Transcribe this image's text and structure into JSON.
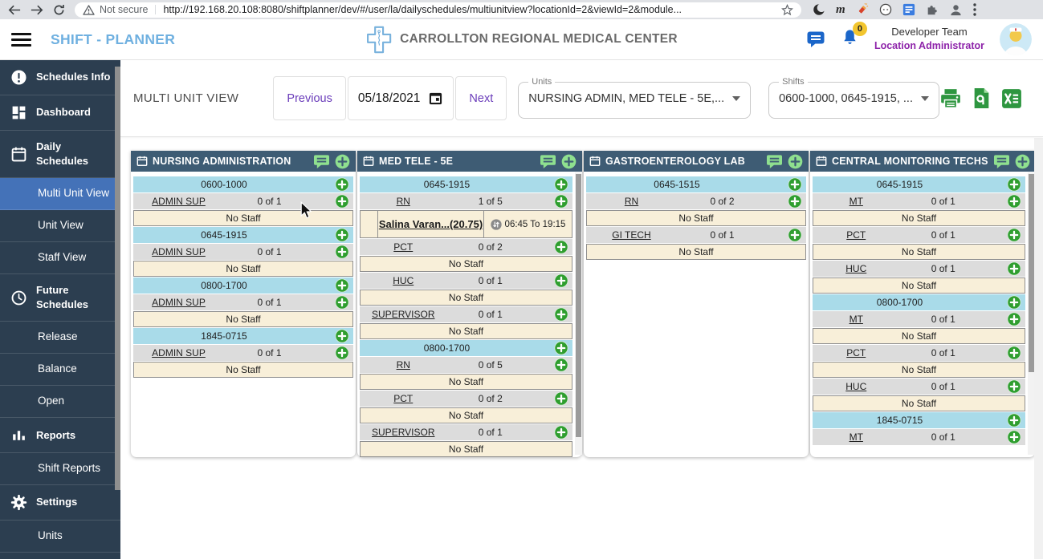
{
  "browser": {
    "security_label": "Not secure",
    "url": "http://192.168.20.108:8080/shiftplanner/dev/#/user/la/dailyschedules/multiunitview?locationId=2&viewId=2&module..."
  },
  "header": {
    "app_title": "SHIFT - PLANNER",
    "hospital_name": "CARROLLTON REGIONAL MEDICAL CENTER",
    "notification_count": "0",
    "user_name": "Developer Team",
    "user_role": "Location Administrator"
  },
  "sidebar": {
    "items": [
      {
        "label": "Schedules Info",
        "icon": "alert",
        "type": "section"
      },
      {
        "label": "Dashboard",
        "icon": "dashboard",
        "type": "section"
      },
      {
        "label": "Daily Schedules",
        "icon": "calendar",
        "type": "section"
      },
      {
        "label": "Multi Unit View",
        "type": "sub",
        "selected": true
      },
      {
        "label": "Unit View",
        "type": "sub"
      },
      {
        "label": "Staff View",
        "type": "sub"
      },
      {
        "label": "Future Schedules",
        "icon": "clock",
        "type": "section"
      },
      {
        "label": "Release",
        "type": "sub"
      },
      {
        "label": "Balance",
        "type": "sub"
      },
      {
        "label": "Open",
        "type": "sub"
      },
      {
        "label": "Reports",
        "icon": "chart",
        "type": "section"
      },
      {
        "label": "Shift Reports",
        "type": "sub"
      },
      {
        "label": "Settings",
        "icon": "gear",
        "type": "section"
      },
      {
        "label": "Units",
        "type": "sub"
      }
    ]
  },
  "toolbar": {
    "page_title": "MULTI UNIT VIEW",
    "previous_label": "Previous",
    "date_value": "05/18/2021",
    "next_label": "Next",
    "units_label": "Units",
    "units_value": "NURSING ADMIN, MED TELE - 5E,...",
    "shifts_label": "Shifts",
    "shifts_value": "0600-1000, 0645-1915, ..."
  },
  "icons": {
    "header": [
      "chat-icon",
      "bell-icon"
    ],
    "toolbar": [
      "calendar-icon",
      "print-icon",
      "pdf-export-icon",
      "excel-export-icon"
    ],
    "unit_header": [
      "calendar-icon",
      "notes-icon",
      "add-icon"
    ],
    "rows": [
      "add-staff-icon",
      "swap-time-icon"
    ]
  },
  "units": [
    {
      "name": "NURSING ADMINISTRATION",
      "scroll_thumb_percent": 0,
      "rows": [
        {
          "type": "shift",
          "label": "0600-1000"
        },
        {
          "type": "role",
          "role": "ADMIN SUP",
          "count": "0 of 1"
        },
        {
          "type": "nostaff",
          "label": "No Staff"
        },
        {
          "type": "shift",
          "label": "0645-1915"
        },
        {
          "type": "role",
          "role": "ADMIN SUP",
          "count": "0 of 1"
        },
        {
          "type": "nostaff",
          "label": "No Staff"
        },
        {
          "type": "shift",
          "label": "0800-1700"
        },
        {
          "type": "role",
          "role": "ADMIN SUP",
          "count": "0 of 1"
        },
        {
          "type": "nostaff",
          "label": "No Staff"
        },
        {
          "type": "shift",
          "label": "1845-0715"
        },
        {
          "type": "role",
          "role": "ADMIN SUP",
          "count": "0 of 1"
        },
        {
          "type": "nostaff",
          "label": "No Staff"
        }
      ]
    },
    {
      "name": "MED TELE - 5E",
      "scroll_thumb_percent": 93,
      "rows": [
        {
          "type": "shift",
          "label": "0645-1915"
        },
        {
          "type": "role",
          "role": "RN",
          "count": "1 of 5"
        },
        {
          "type": "staff",
          "name": "Salina Varan...",
          "hours": "(20.75)",
          "time": "06:45 To 19:15"
        },
        {
          "type": "role",
          "role": "PCT",
          "count": "0 of 2"
        },
        {
          "type": "nostaff",
          "label": "No Staff"
        },
        {
          "type": "role",
          "role": "HUC",
          "count": "0 of 1"
        },
        {
          "type": "nostaff",
          "label": "No Staff"
        },
        {
          "type": "role",
          "role": "SUPERVISOR",
          "count": "0 of 1"
        },
        {
          "type": "nostaff",
          "label": "No Staff"
        },
        {
          "type": "shift",
          "label": "0800-1700"
        },
        {
          "type": "role",
          "role": "RN",
          "count": "0 of 5"
        },
        {
          "type": "nostaff",
          "label": "No Staff"
        },
        {
          "type": "role",
          "role": "PCT",
          "count": "0 of 2"
        },
        {
          "type": "nostaff",
          "label": "No Staff"
        },
        {
          "type": "role",
          "role": "SUPERVISOR",
          "count": "0 of 1"
        },
        {
          "type": "nostaff",
          "label": "No Staff"
        }
      ]
    },
    {
      "name": "GASTROENTEROLOGY LAB",
      "scroll_thumb_percent": 0,
      "rows": [
        {
          "type": "shift",
          "label": "0645-1515"
        },
        {
          "type": "role",
          "role": "RN",
          "count": "0 of 2"
        },
        {
          "type": "nostaff",
          "label": "No Staff"
        },
        {
          "type": "role",
          "role": "GI TECH",
          "count": "0 of 1"
        },
        {
          "type": "nostaff",
          "label": "No Staff"
        }
      ]
    },
    {
      "name": "CENTRAL MONITORING TECHS",
      "scroll_thumb_percent": 70,
      "rows": [
        {
          "type": "shift",
          "label": "0645-1915"
        },
        {
          "type": "role",
          "role": "MT",
          "count": "0 of 1"
        },
        {
          "type": "nostaff",
          "label": "No Staff"
        },
        {
          "type": "role",
          "role": "PCT",
          "count": "0 of 1"
        },
        {
          "type": "nostaff",
          "label": "No Staff"
        },
        {
          "type": "role",
          "role": "HUC",
          "count": "0 of 1"
        },
        {
          "type": "nostaff",
          "label": "No Staff"
        },
        {
          "type": "shift",
          "label": "0800-1700"
        },
        {
          "type": "role",
          "role": "MT",
          "count": "0 of 1"
        },
        {
          "type": "nostaff",
          "label": "No Staff"
        },
        {
          "type": "role",
          "role": "PCT",
          "count": "0 of 1"
        },
        {
          "type": "nostaff",
          "label": "No Staff"
        },
        {
          "type": "role",
          "role": "HUC",
          "count": "0 of 1"
        },
        {
          "type": "nostaff",
          "label": "No Staff"
        },
        {
          "type": "shift",
          "label": "1845-0715"
        },
        {
          "type": "role",
          "role": "MT",
          "count": "0 of 1"
        }
      ]
    }
  ]
}
